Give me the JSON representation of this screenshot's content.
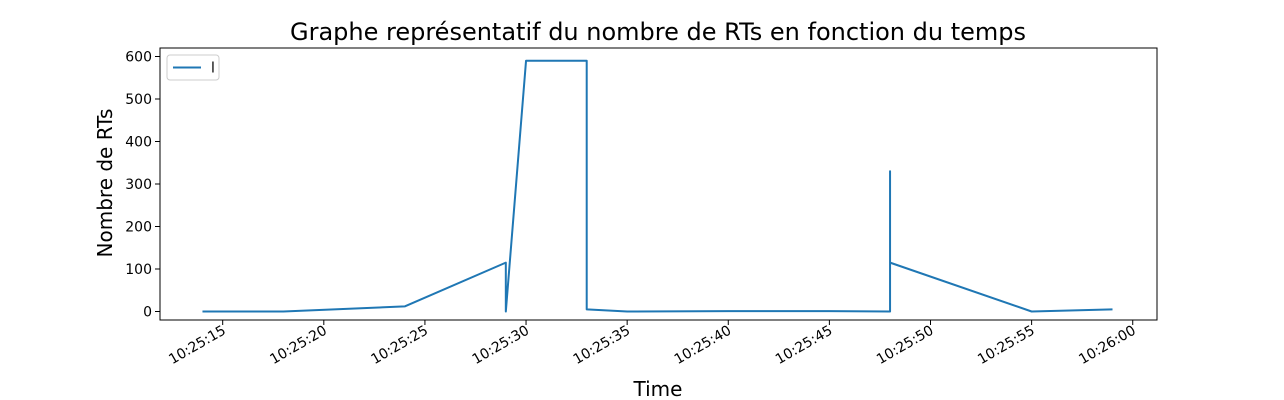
{
  "chart_data": {
    "type": "line",
    "title": "Graphe représentatif du nombre de RTs en fonction du temps",
    "xlabel": "Time",
    "ylabel": "Nombre de RTs",
    "x_ticks": [
      "10:25:15",
      "10:25:20",
      "10:25:25",
      "10:25:30",
      "10:25:35",
      "10:25:40",
      "10:25:45",
      "10:25:50",
      "10:25:55",
      "10:26:00"
    ],
    "y_ticks": [
      "0",
      "100",
      "200",
      "300",
      "400",
      "500",
      "600"
    ],
    "ylim": [
      -20,
      620
    ],
    "xlim": [
      "10:25:11.9",
      "10:26:01.2"
    ],
    "grid": false,
    "legend_position": "top-left",
    "series": [
      {
        "name": "l",
        "color": "#1f77b4",
        "x": [
          "10:25:14",
          "10:25:18",
          "10:25:24",
          "10:25:29",
          "10:25:29",
          "10:25:30",
          "10:25:33",
          "10:25:33",
          "10:25:35",
          "10:25:40",
          "10:25:45",
          "10:25:48",
          "10:25:48",
          "10:25:48",
          "10:25:55",
          "10:25:59"
        ],
        "values": [
          0,
          0,
          12,
          115,
          0,
          590,
          590,
          5,
          0,
          1,
          1,
          0,
          330,
          115,
          0,
          5
        ]
      }
    ]
  }
}
